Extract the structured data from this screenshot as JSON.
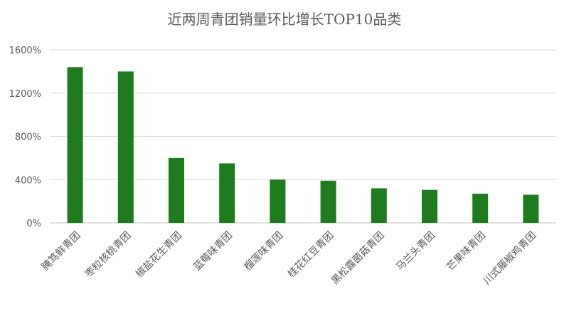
{
  "chart_data": {
    "type": "bar",
    "title": "近两周青团销量环比增长TOP10品类",
    "categories": [
      "腌笃鲜青团",
      "枣粒核桃青团",
      "椒盐花生青团",
      "蓝莓味青团",
      "榴莲味青团",
      "桂花红豆青团",
      "黑松露菌菇青团",
      "马兰头青团",
      "芒果味青团",
      "川式藤椒鸡青团"
    ],
    "values": [
      14.4,
      14.0,
      6.0,
      5.5,
      4.0,
      3.9,
      3.2,
      3.05,
      2.7,
      2.6
    ],
    "ylim": [
      0,
      16
    ],
    "yticks": [
      0,
      4,
      8,
      12,
      16
    ],
    "ytick_labels": [
      "0%",
      "400%",
      "800%",
      "1200%",
      "1600%"
    ],
    "grid": true,
    "legend": "none",
    "bar_color": "#1e7b1e"
  }
}
